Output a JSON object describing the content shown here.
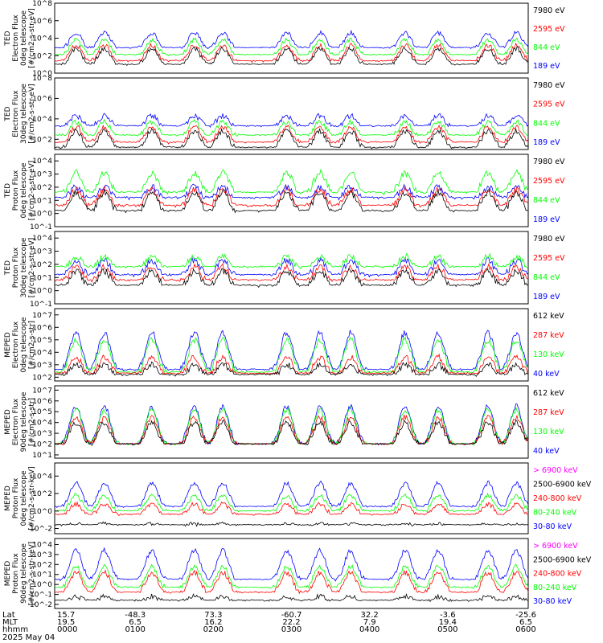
{
  "colors": {
    "black": "#000000",
    "red": "#ff0000",
    "green": "#00ff00",
    "blue": "#0000ff",
    "magenta": "#ff00ff"
  },
  "chart_data": [
    {
      "type": "line",
      "ylabel_lines": [
        "TED",
        "Electron Flux",
        "0deg telescope",
        "[#/cm2-s-str-eV]"
      ],
      "yticks": [
        "10^0",
        "10^2",
        "10^4",
        "10^6",
        "10^8"
      ],
      "log_range": [
        0,
        8
      ],
      "baseline_exp": 2,
      "legend": [
        {
          "label": "7980 eV",
          "color": "#000000"
        },
        {
          "label": "2595 eV",
          "color": "#ff0000"
        },
        {
          "label": "844 eV",
          "color": "#00ff00"
        },
        {
          "label": "189 eV",
          "color": "#0000ff"
        }
      ],
      "series": [
        {
          "color": "#0000ff",
          "base": 2.7,
          "peak": 4.6
        },
        {
          "color": "#00ff00",
          "base": 1.9,
          "peak": 3.8
        },
        {
          "color": "#ff0000",
          "base": 1.2,
          "peak": 3.2
        },
        {
          "color": "#000000",
          "base": 0.8,
          "peak": 2.8
        }
      ]
    },
    {
      "type": "line",
      "ylabel_lines": [
        "TED",
        "Electron Flux",
        "30deg telescope",
        "[#/cm2-s-str-eV]"
      ],
      "yticks": [
        "10^2",
        "10^4",
        "10^6",
        "10^8"
      ],
      "log_range": [
        1,
        8
      ],
      "baseline_exp": 2,
      "legend": [
        {
          "label": "7980 eV",
          "color": "#000000"
        },
        {
          "label": "2595 eV",
          "color": "#ff0000"
        },
        {
          "label": "844 eV",
          "color": "#00ff00"
        },
        {
          "label": "189 eV",
          "color": "#0000ff"
        }
      ],
      "series": [
        {
          "color": "#0000ff",
          "base": 3.1,
          "peak": 4.3
        },
        {
          "color": "#00ff00",
          "base": 2.2,
          "peak": 3.7
        },
        {
          "color": "#ff0000",
          "base": 1.5,
          "peak": 3.2
        },
        {
          "color": "#000000",
          "base": 1.0,
          "peak": 2.8
        }
      ]
    },
    {
      "type": "line",
      "ylabel_lines": [
        "TED",
        "Proton Flux",
        "0deg telescope",
        "[#/cm2-s-str-eV]"
      ],
      "yticks": [
        "10^-1",
        "10^0",
        "10^1",
        "10^2",
        "10^3",
        "10^4"
      ],
      "log_range": [
        -1,
        4.5
      ],
      "baseline_exp": -1,
      "legend": [
        {
          "label": "7980 eV",
          "color": "#000000"
        },
        {
          "label": "2595 eV",
          "color": "#ff0000"
        },
        {
          "label": "844 eV",
          "color": "#00ff00"
        },
        {
          "label": "189 eV",
          "color": "#0000ff"
        }
      ],
      "series": [
        {
          "color": "#0000ff",
          "base": 1.0,
          "peak": 2.0
        },
        {
          "color": "#00ff00",
          "base": 1.4,
          "peak": 3.1
        },
        {
          "color": "#ff0000",
          "base": 0.4,
          "peak": 1.8
        },
        {
          "color": "#000000",
          "base": 0.0,
          "peak": 1.6
        }
      ]
    },
    {
      "type": "line",
      "ylabel_lines": [
        "TED",
        "Proton Flux",
        "30deg telescope",
        "[#/cm2-s-str-eV]"
      ],
      "yticks": [
        "10^-1",
        "10^0",
        "10^1",
        "10^2",
        "10^3",
        "10^4"
      ],
      "log_range": [
        -1,
        4.5
      ],
      "baseline_exp": -1,
      "legend": [
        {
          "label": "7980 eV",
          "color": "#000000"
        },
        {
          "label": "2595 eV",
          "color": "#ff0000"
        },
        {
          "label": "844 eV",
          "color": "#00ff00"
        },
        {
          "label": "189 eV",
          "color": "#0000ff"
        }
      ],
      "series": [
        {
          "color": "#0000ff",
          "base": 1.0,
          "peak": 2.3
        },
        {
          "color": "#00ff00",
          "base": 1.6,
          "peak": 2.6
        },
        {
          "color": "#ff0000",
          "base": 0.6,
          "peak": 1.8
        },
        {
          "color": "#000000",
          "base": 0.2,
          "peak": 1.5
        }
      ]
    },
    {
      "type": "line",
      "ylabel_lines": [
        "MEPED",
        "Electron Flux",
        "0deg telescope",
        "[#/cm2-s-str]"
      ],
      "yticks": [
        "10^2",
        "10^3",
        "10^4",
        "10^5",
        "10^6",
        "10^7"
      ],
      "log_range": [
        1.7,
        7.5
      ],
      "baseline_exp": 2,
      "legend": [
        {
          "label": "612 keV",
          "color": "#000000"
        },
        {
          "label": "287 keV",
          "color": "#ff0000"
        },
        {
          "label": "130 keV",
          "color": "#00ff00"
        },
        {
          "label": "40 keV",
          "color": "#0000ff"
        }
      ],
      "series": [
        {
          "color": "#0000ff",
          "base": 2.4,
          "peak": 5.6
        },
        {
          "color": "#00ff00",
          "base": 2.2,
          "peak": 5.0
        },
        {
          "color": "#ff0000",
          "base": 2.1,
          "peak": 3.6
        },
        {
          "color": "#000000",
          "base": 2.0,
          "peak": 3.0
        }
      ]
    },
    {
      "type": "line",
      "ylabel_lines": [
        "MEPED",
        "Electron Flux",
        "90deg telescope",
        "[#/cm2-s-str]"
      ],
      "yticks": [
        "10^1",
        "10^2",
        "10^3",
        "10^4",
        "10^5",
        "10^6",
        "10^7"
      ],
      "log_range": [
        0.7,
        7.4
      ],
      "baseline_exp": 1.8,
      "legend": [
        {
          "label": "612 keV",
          "color": "#000000"
        },
        {
          "label": "287 keV",
          "color": "#ff0000"
        },
        {
          "label": "130 keV",
          "color": "#00ff00"
        },
        {
          "label": "40 keV",
          "color": "#0000ff"
        }
      ],
      "series": [
        {
          "color": "#0000ff",
          "base": 1.8,
          "peak": 5.5
        },
        {
          "color": "#00ff00",
          "base": 1.8,
          "peak": 5.2
        },
        {
          "color": "#ff0000",
          "base": 1.8,
          "peak": 4.5
        },
        {
          "color": "#000000",
          "base": 1.8,
          "peak": 4.0
        }
      ]
    },
    {
      "type": "line",
      "ylabel_lines": [
        "MEPED",
        "Proton Flux",
        "0deg telescope",
        "[#/cm2-s-str-keV]"
      ],
      "yticks": [
        "10^-2",
        "10^0",
        "10^2",
        "10^4"
      ],
      "log_range": [
        -2.6,
        5.5
      ],
      "baseline_exp": -2.4,
      "legend": [
        {
          "label": "> 6900 keV",
          "color": "#ff00ff"
        },
        {
          "label": "2500-6900 keV",
          "color": "#000000"
        },
        {
          "label": "240-800 keV",
          "color": "#ff0000"
        },
        {
          "label": "80-240 keV",
          "color": "#00ff00"
        },
        {
          "label": "30-80 keV",
          "color": "#0000ff"
        }
      ],
      "series": [
        {
          "color": "#0000ff",
          "base": 0.3,
          "peak": 3.2
        },
        {
          "color": "#00ff00",
          "base": -0.2,
          "peak": 1.8
        },
        {
          "color": "#ff0000",
          "base": -0.6,
          "peak": 0.8
        },
        {
          "color": "#000000",
          "base": -1.8,
          "peak": -1.5
        }
      ]
    },
    {
      "type": "line",
      "ylabel_lines": [
        "MEPED",
        "Proton Flux",
        "90deg telescope",
        "[#/cm2-s-str-keV]"
      ],
      "yticks": [
        "10^-2",
        "10^-1",
        "10^0",
        "10^1",
        "10^2",
        "10^3",
        "10^4"
      ],
      "log_range": [
        -2.4,
        4.6
      ],
      "baseline_exp": -2.2,
      "legend": [
        {
          "label": "> 6900 keV",
          "color": "#ff00ff"
        },
        {
          "label": "2500-6900 keV",
          "color": "#000000"
        },
        {
          "label": "240-800 keV",
          "color": "#ff0000"
        },
        {
          "label": "80-240 keV",
          "color": "#00ff00"
        },
        {
          "label": "30-80 keV",
          "color": "#0000ff"
        }
      ],
      "series": [
        {
          "color": "#0000ff",
          "base": 0.3,
          "peak": 3.4
        },
        {
          "color": "#00ff00",
          "base": -0.5,
          "peak": 1.8
        },
        {
          "color": "#ff0000",
          "base": -1.0,
          "peak": 1.2
        },
        {
          "color": "#000000",
          "base": -1.8,
          "peak": -1.2
        }
      ]
    }
  ],
  "x_axis": {
    "row_labels": [
      "Lat",
      "MLT",
      "hhmm"
    ],
    "date": "2025 May 04",
    "ticks": [
      {
        "lat": "15.7",
        "mlt": "19.5",
        "time": "0000"
      },
      {
        "lat": "-48.3",
        "mlt": "6.5",
        "time": "0100"
      },
      {
        "lat": "73.3",
        "mlt": "16.2",
        "time": "0200"
      },
      {
        "lat": "-60.7",
        "mlt": "22.2",
        "time": "0300"
      },
      {
        "lat": "32.2",
        "mlt": "7.9",
        "time": "0400"
      },
      {
        "lat": "-3.6",
        "mlt": "19.4",
        "time": "0500"
      },
      {
        "lat": "-25.6",
        "mlt": "6.5",
        "time": "0600"
      }
    ]
  }
}
